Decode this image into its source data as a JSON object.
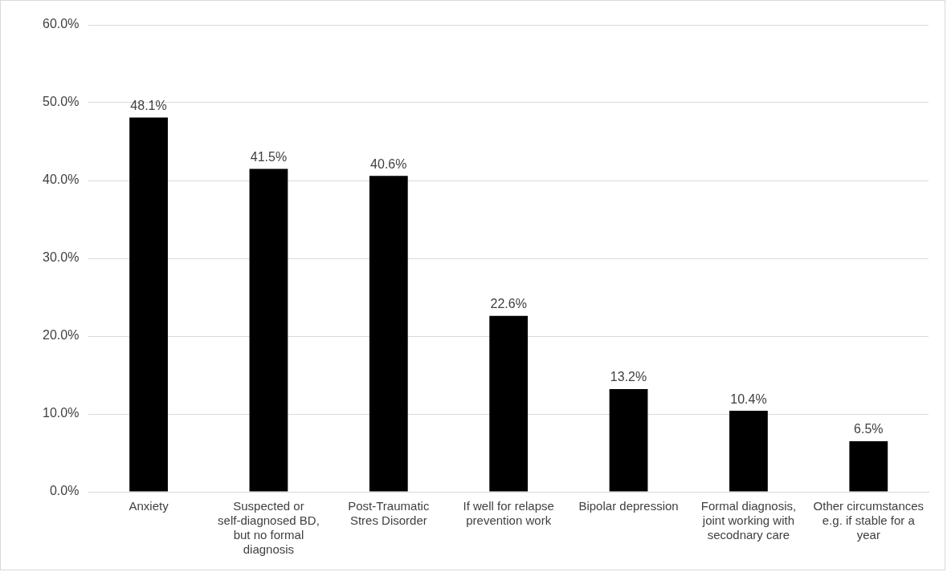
{
  "chart_data": {
    "type": "bar",
    "categories": [
      "Anxiety",
      "Suspected or self-diagnosed BD, but no formal diagnosis",
      "Post-Traumatic Stres Disorder",
      "If well for relapse prevention work",
      "Bipolar depression",
      "Formal diagnosis, joint working with secodnary care",
      "Other circumstances e.g. if stable for a year"
    ],
    "values": [
      48.1,
      41.5,
      40.6,
      22.6,
      13.2,
      10.4,
      6.5
    ],
    "value_labels": [
      "48.1%",
      "41.5%",
      "40.6%",
      "22.6%",
      "13.2%",
      "10.4%",
      "6.5%"
    ],
    "color": "#000000",
    "ylim": [
      0,
      60
    ],
    "yticks": [
      {
        "value": 0,
        "label": "0.0%"
      },
      {
        "value": 10,
        "label": "10.0%"
      },
      {
        "value": 20,
        "label": "20.0%"
      },
      {
        "value": 30,
        "label": "30.0%"
      },
      {
        "value": 40,
        "label": "40.0%"
      },
      {
        "value": 50,
        "label": "50.0%"
      },
      {
        "value": 60,
        "label": "60.0%"
      }
    ],
    "grid": "y",
    "legend": false
  }
}
